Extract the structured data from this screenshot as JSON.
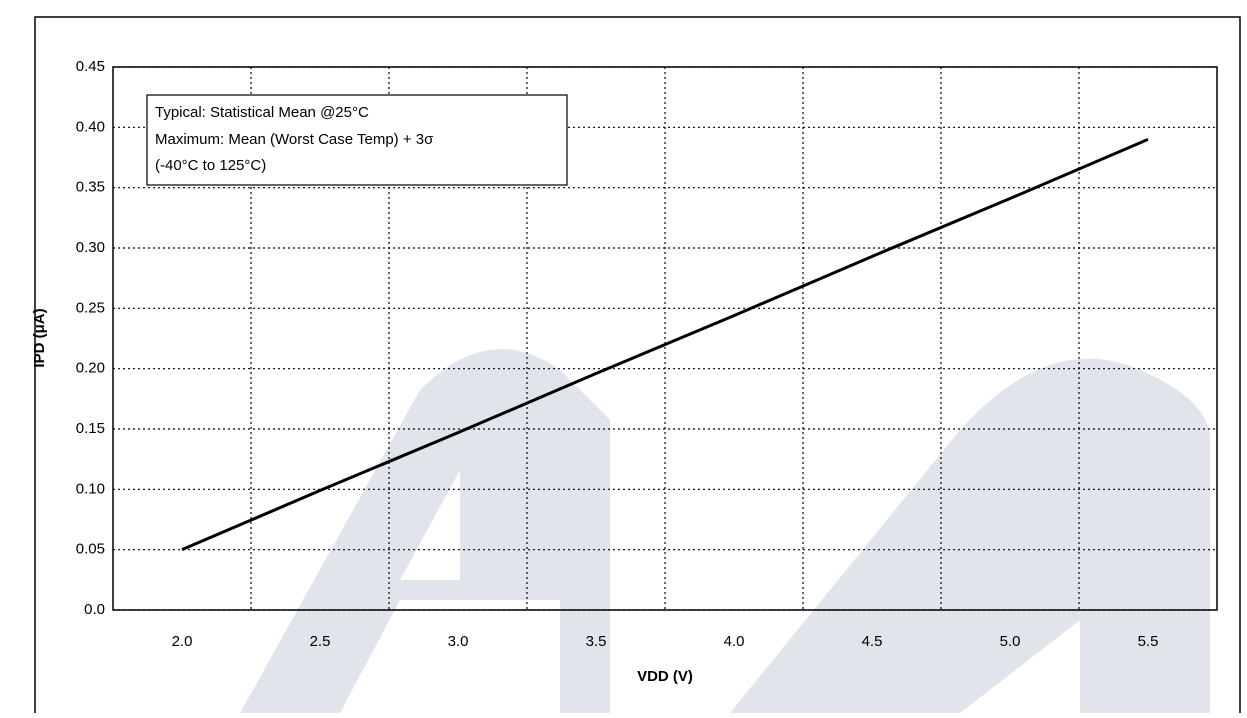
{
  "chart_data": {
    "type": "line",
    "annotation": [
      "Typical: Statistical Mean @25°C",
      "Maximum: Mean (Worst Case Temp) + 3σ",
      "(-40°C to 125°C)"
    ],
    "x_label": "VDD (V)",
    "y_label": "IPD (μA)",
    "categories": [
      "2.0",
      "2.5",
      "3.0",
      "3.5",
      "4.0",
      "4.5",
      "5.0",
      "5.5"
    ],
    "values": [
      0.05,
      0.099,
      0.147,
      0.196,
      0.244,
      0.293,
      0.341,
      0.39
    ],
    "color": "#000000",
    "ylim": [
      0,
      0.45
    ],
    "yticks": [
      {
        "value": 0,
        "label": "0.0"
      },
      0.05,
      {
        "value": 0.1,
        "label": "0.10"
      },
      0.15,
      {
        "value": 0.2,
        "label": "0.20"
      },
      0.25,
      {
        "value": 0.3,
        "label": "0.30"
      },
      0.35,
      {
        "value": 0.4,
        "label": "0.40"
      },
      0.45
    ],
    "grid": true
  }
}
